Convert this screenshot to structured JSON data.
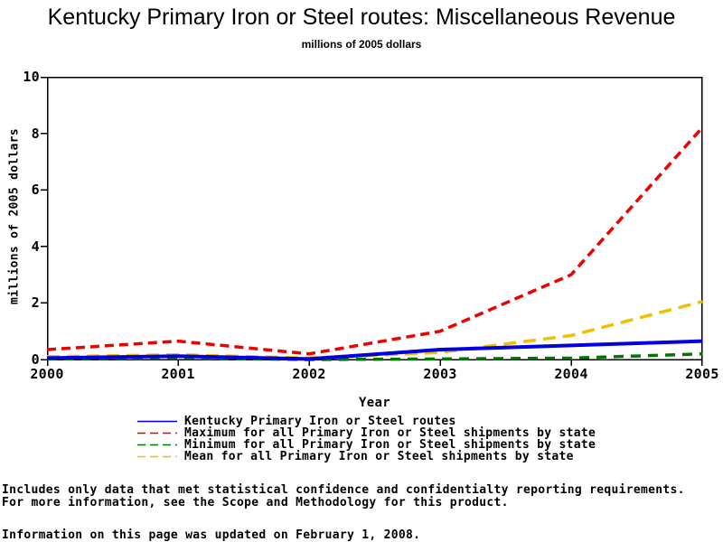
{
  "title": "Kentucky Primary Iron or Steel routes: Miscellaneous Revenue",
  "subtitle": "millions of 2005 dollars",
  "chart_data": {
    "type": "line",
    "x": [
      2000,
      2001,
      2002,
      2003,
      2004,
      2005
    ],
    "x_ticks": [
      "2000",
      "2001",
      "2002",
      "2003",
      "2004",
      "2005"
    ],
    "y_ticks": [
      "0",
      "2",
      "4",
      "6",
      "8",
      "10"
    ],
    "xlabel": "Year",
    "ylabel": "millions of 2005 dollars",
    "xlim": [
      2000,
      2005
    ],
    "ylim": [
      0,
      10
    ],
    "grid": false,
    "legend_position": "bottom",
    "series": [
      {
        "name": "Kentucky Primary Iron or Steel routes",
        "color": "#0000E0",
        "style": "solid",
        "values": [
          0.05,
          0.12,
          0.02,
          0.35,
          0.5,
          0.65
        ]
      },
      {
        "name": "Maximum for all Primary Iron or Steel shipments by state",
        "color": "#EE0000",
        "style": "dashed",
        "values": [
          0.35,
          0.65,
          0.2,
          1.0,
          3.0,
          8.2
        ]
      },
      {
        "name": "Minimum for all Primary Iron or Steel shipments by state",
        "color": "#007700",
        "style": "dashed",
        "values": [
          0.02,
          0.05,
          0.0,
          0.02,
          0.05,
          0.2
        ]
      },
      {
        "name": "Mean for all Primary Iron or Steel shipments by state",
        "color": "#F0C000",
        "style": "dashed",
        "values": [
          0.1,
          0.17,
          0.05,
          0.25,
          0.85,
          2.05
        ]
      }
    ]
  },
  "footer": {
    "line1": "Includes only data that met statistical confidence and confidentialty reporting requirements.",
    "line2": "For more information, see the Scope and Methodology for this product.",
    "updated": "Information on this page was updated on February 1, 2008."
  }
}
